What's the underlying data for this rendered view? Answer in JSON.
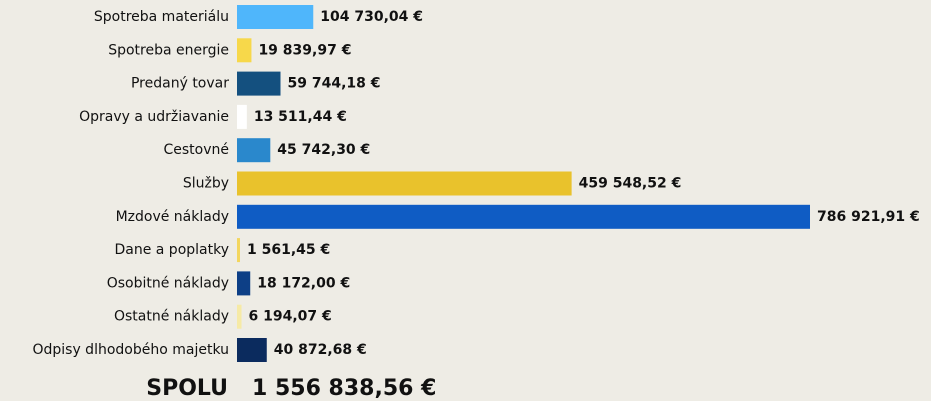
{
  "chart_data": {
    "type": "barh",
    "categories": [
      "Spotreba materiálu",
      "Spotreba energie",
      "Predaný tovar",
      "Opravy a udržiavanie",
      "Cestovné",
      "Služby",
      "Mzdové náklady",
      "Dane a poplatky",
      "Osobitné náklady",
      "Ostatné náklady",
      "Odpisy dlhodobého majetku"
    ],
    "values": [
      104730.04,
      19839.97,
      59744.18,
      13511.44,
      45742.3,
      459548.52,
      786921.91,
      1561.45,
      18172.0,
      6194.07,
      40872.68
    ],
    "value_labels": [
      "104 730,04 €",
      "19 839,97 €",
      "59 744,18 €",
      "13 511,44 €",
      "45 742,30 €",
      "459 548,52 €",
      "786 921,91 €",
      "1 561,45 €",
      "18 172,00 €",
      "6 194,07 €",
      "40 872,68 €"
    ],
    "colors": [
      "#4fb6fb",
      "#f7d84a",
      "#14507f",
      "#ffffff",
      "#2a88cc",
      "#e9c22c",
      "#0f5cc4",
      "#f3d65e",
      "#0d3f86",
      "#f6eaa6",
      "#0b2b5e"
    ],
    "total_label": "SPOLU",
    "total": "1 556 838,56 €"
  }
}
